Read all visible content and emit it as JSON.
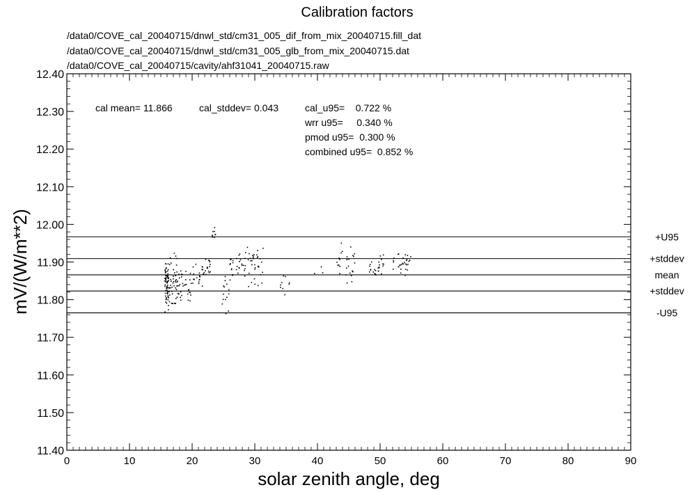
{
  "chart_data": {
    "type": "scatter",
    "title": "Calibration factors",
    "subtitle_lines": [
      "/data0/COVE_cal_20040715/dnwl_std/cm31_005_dif_from_mix_20040715.fill_dat",
      "/data0/COVE_cal_20040715/dnwl_std/cm31_005_glb_from_mix_20040715.dat",
      "/data0/COVE_cal_20040715/cavity/ahf31041_20040715.raw"
    ],
    "xlabel": "solar zenith angle, deg",
    "ylabel": "mV/(W/m**2)",
    "xlim": [
      0,
      90
    ],
    "ylim": [
      11.4,
      12.4
    ],
    "x_ticks": [
      "0",
      "10",
      "20",
      "30",
      "40",
      "50",
      "60",
      "70",
      "80",
      "90"
    ],
    "y_ticks": [
      "11.40",
      "11.50",
      "11.60",
      "11.70",
      "11.80",
      "11.90",
      "12.00",
      "12.10",
      "12.20",
      "12.30",
      "12.40"
    ],
    "stats": {
      "cal_mean": "cal mean= 11.866",
      "cal_stddev": "cal_stddev= 0.043",
      "cal_u95": "cal_u95=    0.722 %",
      "wrr_u95": "wrr u95=     0.340 %",
      "pmod_u95": "pmod u95=  0.300 %",
      "combined_u95": "combined u95=  0.852 %"
    },
    "reference_lines": [
      {
        "label": "+U95",
        "value": 11.967
      },
      {
        "label": "+stddev",
        "value": 11.909
      },
      {
        "label": "mean",
        "value": 11.866
      },
      {
        "label": "+stddev",
        "value": 11.823
      },
      {
        "label": "-U95",
        "value": 11.765
      }
    ],
    "clusters": [
      {
        "x0": 15.6,
        "x1": 16.4,
        "ymin": 11.745,
        "ymax": 11.895,
        "center": 11.835,
        "n": 70
      },
      {
        "x0": 16.4,
        "x1": 17.6,
        "ymin": 11.79,
        "ymax": 11.955,
        "center": 11.85,
        "n": 40
      },
      {
        "x0": 17.6,
        "x1": 18.6,
        "ymin": 11.76,
        "ymax": 11.9,
        "center": 11.84,
        "n": 20
      },
      {
        "x0": 18.6,
        "x1": 20.0,
        "ymin": 11.77,
        "ymax": 11.88,
        "center": 11.835,
        "n": 16
      },
      {
        "x0": 20.0,
        "x1": 21.2,
        "ymin": 11.8,
        "ymax": 11.905,
        "center": 11.85,
        "n": 14
      },
      {
        "x0": 21.2,
        "x1": 23.0,
        "ymin": 11.83,
        "ymax": 11.935,
        "center": 11.88,
        "n": 24
      },
      {
        "x0": 23.2,
        "x1": 23.9,
        "ymin": 11.93,
        "ymax": 12.02,
        "center": 11.975,
        "n": 10
      },
      {
        "x0": 24.8,
        "x1": 25.9,
        "ymin": 11.75,
        "ymax": 11.89,
        "center": 11.83,
        "n": 14
      },
      {
        "x0": 26.0,
        "x1": 28.6,
        "ymin": 11.84,
        "ymax": 11.945,
        "center": 11.89,
        "n": 30
      },
      {
        "x0": 28.8,
        "x1": 31.4,
        "ymin": 11.81,
        "ymax": 11.98,
        "center": 11.89,
        "n": 34
      },
      {
        "x0": 33.8,
        "x1": 35.6,
        "ymin": 11.8,
        "ymax": 11.89,
        "center": 11.84,
        "n": 9
      },
      {
        "x0": 36.5,
        "x1": 41.0,
        "ymin": 11.86,
        "ymax": 11.89,
        "center": 11.88,
        "n": 3
      },
      {
        "x0": 43.0,
        "x1": 46.2,
        "ymin": 11.84,
        "ymax": 11.965,
        "center": 11.9,
        "n": 28
      },
      {
        "x0": 48.2,
        "x1": 50.6,
        "ymin": 11.845,
        "ymax": 11.925,
        "center": 11.89,
        "n": 26
      },
      {
        "x0": 51.8,
        "x1": 54.9,
        "ymin": 11.86,
        "ymax": 11.935,
        "center": 11.895,
        "n": 30
      }
    ],
    "grid": false,
    "legend": "none"
  }
}
